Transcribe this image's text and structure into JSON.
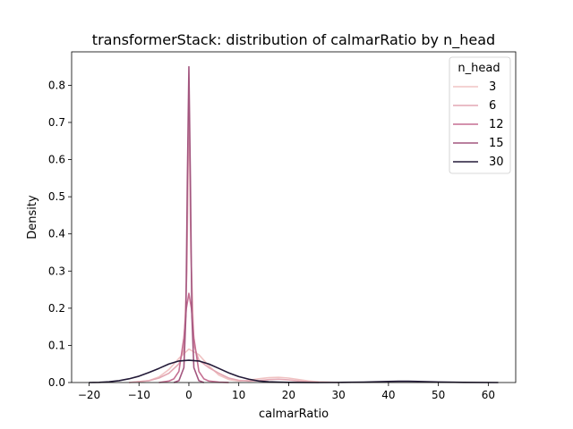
{
  "chart_data": {
    "type": "line",
    "title": "transformerStack: distribution of calmarRatio by n_head",
    "xlabel": "calmarRatio",
    "ylabel": "Density",
    "xlim": [
      -23.5,
      65.5
    ],
    "ylim": [
      0,
      0.89
    ],
    "xticks": [
      -20,
      -10,
      0,
      10,
      20,
      30,
      40,
      50,
      60
    ],
    "yticks": [
      0.0,
      0.1,
      0.2,
      0.3,
      0.4,
      0.5,
      0.6,
      0.7,
      0.8
    ],
    "grid": false,
    "legend": {
      "title": "n_head",
      "placement": "top-right"
    },
    "series": [
      {
        "name": "3",
        "color": "#f0c3c3",
        "x": [
          -12,
          -8,
          -6,
          -4,
          -2,
          0,
          2,
          4,
          6,
          8,
          10,
          12,
          14,
          16,
          18,
          20,
          22,
          24,
          26,
          28,
          30
        ],
        "y": [
          0.0,
          0.005,
          0.015,
          0.035,
          0.065,
          0.09,
          0.075,
          0.045,
          0.02,
          0.008,
          0.004,
          0.006,
          0.01,
          0.013,
          0.014,
          0.012,
          0.008,
          0.004,
          0.002,
          0.001,
          0.0
        ]
      },
      {
        "name": "6",
        "color": "#e3a7b3",
        "x": [
          -12,
          -8,
          -6,
          -4,
          -2,
          -1,
          -0.4,
          0,
          0.4,
          1,
          2,
          4,
          6,
          8,
          10,
          12,
          14,
          16,
          18,
          20,
          22,
          24,
          26
        ],
        "y": [
          0.0,
          0.005,
          0.012,
          0.025,
          0.05,
          0.09,
          0.3,
          0.76,
          0.35,
          0.1,
          0.06,
          0.04,
          0.025,
          0.012,
          0.006,
          0.004,
          0.005,
          0.008,
          0.009,
          0.007,
          0.004,
          0.002,
          0.0
        ]
      },
      {
        "name": "12",
        "color": "#c56f92",
        "x": [
          -6,
          -4,
          -3,
          -2,
          -1,
          -0.5,
          0,
          0.5,
          1,
          2,
          3,
          4,
          6,
          8
        ],
        "y": [
          0.0,
          0.004,
          0.01,
          0.03,
          0.12,
          0.2,
          0.24,
          0.2,
          0.12,
          0.03,
          0.01,
          0.004,
          0.001,
          0.0
        ]
      },
      {
        "name": "15",
        "color": "#a3567f",
        "x": [
          -3,
          -2,
          -1,
          -0.6,
          -0.3,
          0,
          0.3,
          0.6,
          1,
          2,
          3
        ],
        "y": [
          0.0,
          0.005,
          0.04,
          0.18,
          0.55,
          0.85,
          0.55,
          0.18,
          0.04,
          0.005,
          0.0
        ]
      },
      {
        "name": "30",
        "color": "#231a38",
        "x": [
          -20,
          -18,
          -16,
          -14,
          -12,
          -10,
          -8,
          -6,
          -4,
          -2,
          0,
          2,
          4,
          6,
          8,
          10,
          12,
          14,
          16,
          18,
          20,
          25,
          30,
          35,
          40,
          42,
          44,
          46,
          50,
          55,
          62
        ],
        "y": [
          0.0,
          0.0005,
          0.002,
          0.005,
          0.01,
          0.017,
          0.027,
          0.038,
          0.05,
          0.058,
          0.06,
          0.058,
          0.05,
          0.038,
          0.026,
          0.016,
          0.009,
          0.004,
          0.002,
          0.001,
          0.0005,
          0.0,
          0.0003,
          0.001,
          0.003,
          0.0035,
          0.0035,
          0.003,
          0.0015,
          0.0005,
          0.0
        ]
      }
    ]
  }
}
